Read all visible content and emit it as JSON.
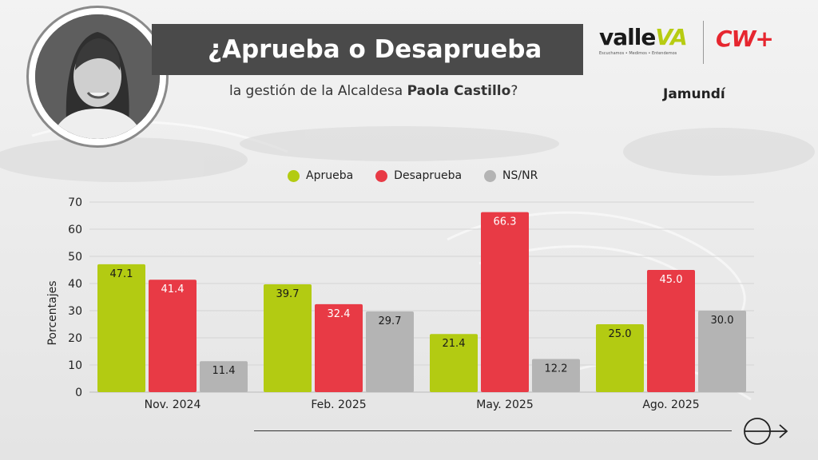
{
  "header": {
    "title": "¿Aprueba o Desaprueba",
    "subtitle_pre": "la gestión de la Alcaldesa ",
    "subtitle_name": "Paola Castillo",
    "subtitle_post": "?",
    "location": "Jamundí"
  },
  "logos": {
    "valle_name": "valle",
    "valle_va": "VA",
    "valle_tagline": "Escuchamos • Medimos • Entendemos",
    "cw": "CW+"
  },
  "colors": {
    "aprueba": "#b3cb12",
    "desaprueba": "#e83a45",
    "nsnr": "#b4b4b4",
    "title_bar": "#4a4a4a",
    "cw_red": "#e6262f"
  },
  "chart_data": {
    "type": "bar",
    "categories": [
      "Nov. 2024",
      "Feb. 2025",
      "May. 2025",
      "Ago. 2025"
    ],
    "series": [
      {
        "name": "Aprueba",
        "values": [
          47.1,
          39.7,
          21.4,
          25.0
        ],
        "labels": [
          "47.1",
          "39.7",
          "21.4",
          "25.0"
        ]
      },
      {
        "name": "Desaprueba",
        "values": [
          41.4,
          32.4,
          66.3,
          45.0
        ],
        "labels": [
          "41.4",
          "32.4",
          "66.3",
          "45.0"
        ]
      },
      {
        "name": "NS/NR",
        "values": [
          11.4,
          29.7,
          12.2,
          30.0
        ],
        "labels": [
          "11.4",
          "29.7",
          "12.2",
          "30.0"
        ]
      }
    ],
    "ylabel": "Porcentajes",
    "ylim": [
      0,
      70
    ],
    "yticks": [
      "0",
      "10",
      "20",
      "30",
      "40",
      "50",
      "60",
      "70"
    ],
    "grid": true,
    "legend_position": "top"
  },
  "icons": {
    "next": "arrow-right-circle-icon"
  }
}
